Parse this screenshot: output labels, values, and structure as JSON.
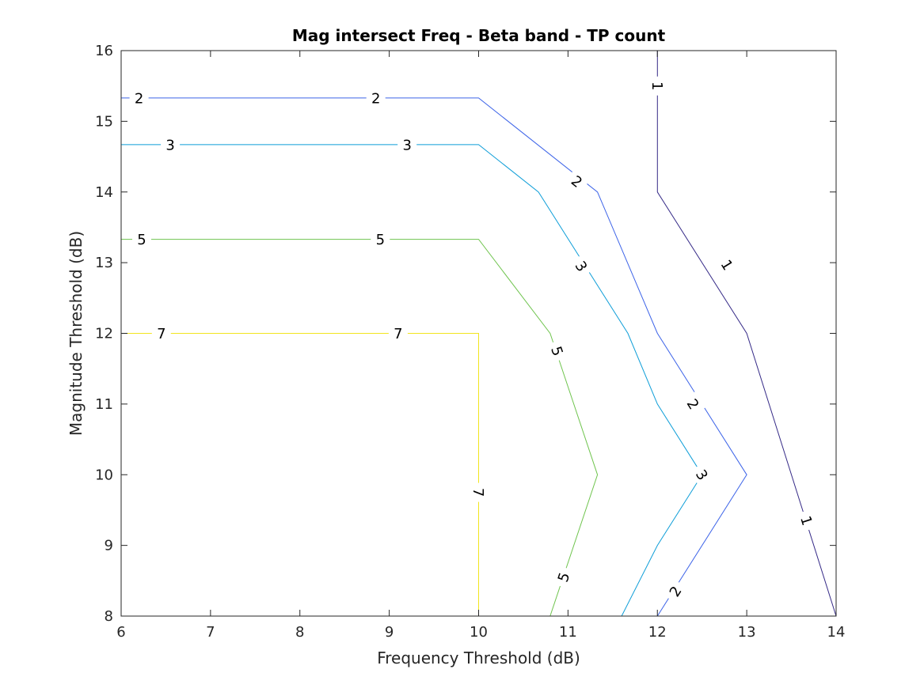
{
  "chart_data": {
    "type": "contour",
    "title": "Mag intersect Freq - Beta band - TP count",
    "xlabel": "Frequency Threshold (dB)",
    "ylabel": "Magnitude Threshold (dB)",
    "xlim": [
      6,
      14
    ],
    "ylim": [
      8,
      16
    ],
    "xticks": [
      6,
      7,
      8,
      9,
      10,
      11,
      12,
      13,
      14
    ],
    "yticks": [
      8,
      9,
      10,
      11,
      12,
      13,
      14,
      15,
      16
    ],
    "grid": false,
    "colormap": "parula",
    "levels": [
      {
        "level": 1,
        "label": "1",
        "color": "#352a87",
        "points": [
          [
            12,
            16
          ],
          [
            12,
            14
          ],
          [
            13,
            12
          ],
          [
            14,
            8
          ]
        ],
        "labels": [
          [
            12.0,
            15.5
          ],
          [
            12.78,
            12.97
          ],
          [
            13.67,
            9.35
          ]
        ]
      },
      {
        "level": 2,
        "label": "2",
        "color": "#3c63e8",
        "points": [
          [
            6,
            15.33
          ],
          [
            10,
            15.33
          ],
          [
            11.33,
            14
          ],
          [
            12,
            12
          ],
          [
            13,
            10
          ],
          [
            12,
            8
          ]
        ],
        "labels": [
          [
            6.2,
            15.33
          ],
          [
            8.85,
            15.33
          ],
          [
            11.1,
            14.15
          ],
          [
            12.4,
            11.0
          ],
          [
            12.2,
            8.35
          ]
        ]
      },
      {
        "level": 3,
        "label": "3",
        "color": "#0f9ed8",
        "points": [
          [
            6,
            14.67
          ],
          [
            10,
            14.67
          ],
          [
            10.67,
            14
          ],
          [
            11.67,
            12
          ],
          [
            12,
            11
          ],
          [
            12.5,
            10
          ],
          [
            12,
            9
          ],
          [
            11.6,
            8
          ]
        ],
        "labels": [
          [
            6.55,
            14.67
          ],
          [
            9.2,
            14.67
          ],
          [
            11.15,
            12.95
          ],
          [
            12.5,
            10.0
          ]
        ]
      },
      {
        "level": 5,
        "label": "5",
        "color": "#6fc44e",
        "points": [
          [
            6,
            13.33
          ],
          [
            10,
            13.33
          ],
          [
            10.8,
            12
          ],
          [
            11.33,
            10
          ],
          [
            10.8,
            8
          ]
        ],
        "labels": [
          [
            6.23,
            13.33
          ],
          [
            8.9,
            13.33
          ],
          [
            10.88,
            11.75
          ],
          [
            10.95,
            8.55
          ]
        ]
      },
      {
        "level": 7,
        "label": "7",
        "color": "#f2e51d",
        "points": [
          [
            6,
            12
          ],
          [
            10,
            12
          ],
          [
            10,
            8
          ]
        ],
        "labels": [
          [
            6.45,
            12.0
          ],
          [
            9.1,
            12.0
          ],
          [
            10.0,
            9.75
          ]
        ]
      }
    ]
  }
}
